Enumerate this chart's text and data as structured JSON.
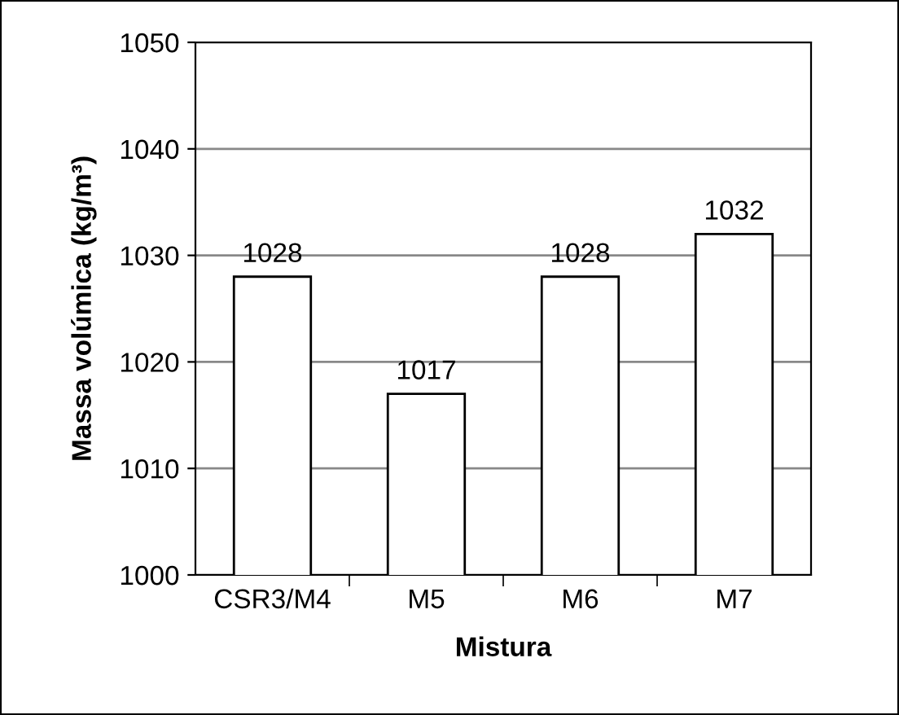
{
  "chart_data": {
    "type": "bar",
    "xlabel": "Mistura",
    "ylabel": "Massa volúmica (kg/m³)",
    "categories": [
      "CSR3/M4",
      "M5",
      "M6",
      "M7"
    ],
    "values": [
      1028,
      1017,
      1028,
      1032
    ],
    "color": "#ffffff",
    "ylim": [
      1000,
      1050
    ],
    "yticks": [
      1000,
      1010,
      1020,
      1030,
      1040,
      1050
    ],
    "grid": "y",
    "data_labels": true
  }
}
